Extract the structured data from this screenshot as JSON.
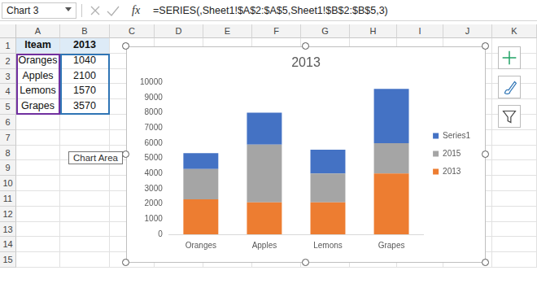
{
  "spreadsheet": {
    "name_box": "Chart 3",
    "function_label": "fx",
    "formula": "=SERIES(,Sheet1!$A$2:$A$5,Sheet1!$B$2:$B$5,3)",
    "columns": [
      "A",
      "B",
      "C",
      "D",
      "E",
      "F",
      "G",
      "H",
      "I",
      "J",
      "K"
    ],
    "rows": [
      1,
      2,
      3,
      4,
      5,
      6,
      7,
      8,
      9,
      10,
      11,
      12,
      13,
      14,
      15
    ],
    "cells": [
      [
        "Iteam",
        "2013"
      ],
      [
        "Oranges",
        1040
      ],
      [
        "Apples",
        2100
      ],
      [
        "Lemons",
        1570
      ],
      [
        "Grapes",
        3570
      ]
    ],
    "tooltip": "Chart Area"
  },
  "chart_data": {
    "type": "bar",
    "title": "2013",
    "categories": [
      "Oranges",
      "Apples",
      "Lemons",
      "Grapes"
    ],
    "series": [
      {
        "name": "2013",
        "color": "#ED7D31",
        "values": [
          2300,
          2100,
          2100,
          4000
        ]
      },
      {
        "name": "2015",
        "color": "#A5A5A5",
        "values": [
          2000,
          3800,
          1900,
          2000
        ]
      },
      {
        "name": "Series1",
        "color": "#4472C4",
        "values": [
          1040,
          2100,
          1570,
          3570
        ]
      }
    ],
    "ylim": [
      0,
      10000
    ],
    "yticks": [
      0,
      1000,
      2000,
      3000,
      4000,
      5000,
      6000,
      7000,
      8000,
      9000,
      10000
    ],
    "stacked": true,
    "grid": false,
    "legend": "right"
  }
}
